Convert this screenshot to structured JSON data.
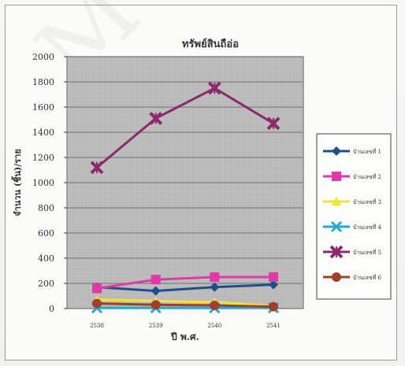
{
  "chart_data": {
    "type": "line",
    "title": "ทรัพย์สินถือ่อ",
    "xlabel": "ปี พ.ศ.",
    "ylabel": "จำนวน (ชิ้น)/ราย",
    "categories": [
      "2538",
      "2539",
      "2540",
      "2541"
    ],
    "ylim": [
      0,
      2000
    ],
    "yticks": [
      "2000",
      "1800",
      "1600",
      "1400",
      "1200",
      "1000",
      "800",
      "600",
      "400",
      "200",
      "0"
    ],
    "grid": true,
    "legend_position": "right",
    "series": [
      {
        "name": "บ้านเลขที่ 1",
        "color": "#1f4e8c",
        "marker": "diamond",
        "values": [
          170,
          140,
          170,
          190
        ]
      },
      {
        "name": "บ้านเลขที่ 2",
        "color": "#e03aa8",
        "marker": "square",
        "values": [
          160,
          230,
          250,
          250
        ]
      },
      {
        "name": "บ้านเลขที่ 3",
        "color": "#f4e23a",
        "marker": "triangle",
        "values": [
          70,
          60,
          50,
          20
        ]
      },
      {
        "name": "บ้านเลขที่ 4",
        "color": "#2aa6d4",
        "marker": "x",
        "values": [
          5,
          5,
          5,
          5
        ]
      },
      {
        "name": "บ้านเลขที่ 5",
        "color": "#8a2a6a",
        "marker": "x-star",
        "values": [
          1120,
          1510,
          1750,
          1470
        ]
      },
      {
        "name": "บ้านเลขที่ 6",
        "color": "#a0402a",
        "marker": "circle",
        "values": [
          40,
          30,
          25,
          15
        ]
      }
    ]
  }
}
